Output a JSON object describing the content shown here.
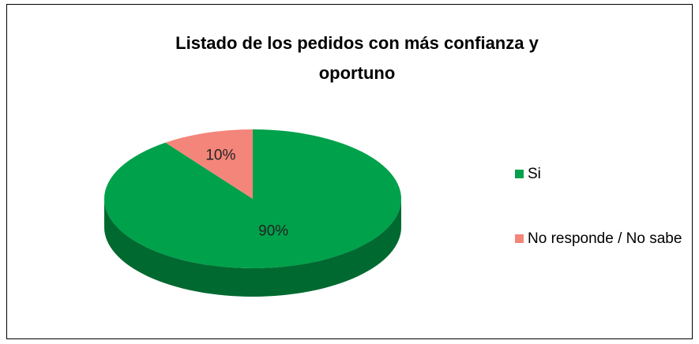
{
  "chart_data": {
    "type": "pie",
    "title": "Listado de los pedidos con más confianza y oportuno",
    "categories": [
      "Si",
      "No responde / No sabe"
    ],
    "values": [
      90,
      10
    ],
    "value_labels": [
      "90%",
      "10%"
    ],
    "colors": [
      "#00a14b",
      "#f4857a"
    ],
    "legend": "right",
    "style": "3d"
  }
}
